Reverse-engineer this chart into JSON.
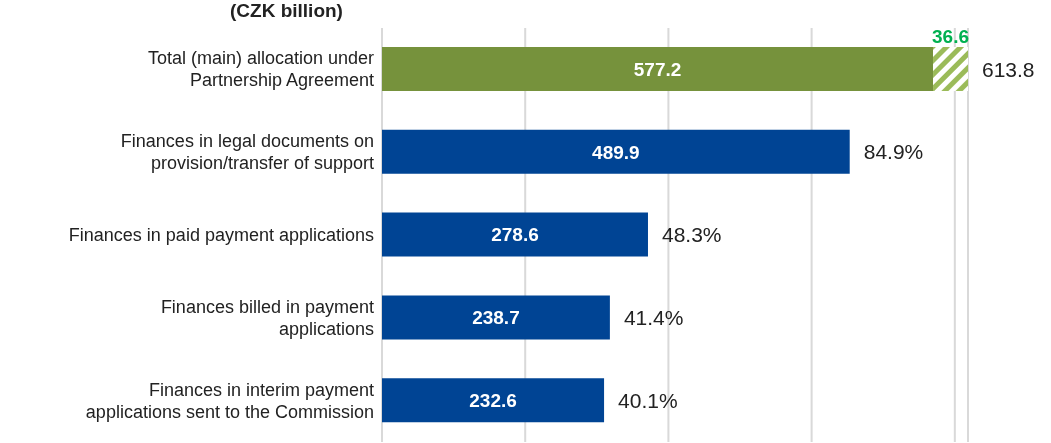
{
  "chart_data": {
    "type": "bar",
    "orientation": "horizontal",
    "stacked": true,
    "title": "(CZK billion)",
    "categories": [
      "Total (main) allocation under Partnership Agreement",
      "Finances in legal documents on provision/transfer of support",
      "Finances in paid payment applications",
      "Finances billed in payment applications",
      "Finances in interim payment applications sent to the Commission"
    ],
    "series": [
      {
        "colors": [
          "#76923c",
          "#004494",
          "#004494",
          "#004494",
          "#004494"
        ],
        "values": [
          577.2,
          489.9,
          278.6,
          238.7,
          232.6
        ]
      },
      {
        "color": "#9bbb59",
        "values": [
          36.6,
          null,
          null,
          null,
          null
        ]
      }
    ],
    "data_labels": true,
    "totals": [
      "613.8",
      null,
      null,
      null,
      null
    ],
    "annotations": [
      {
        "text": "84.9%",
        "x": 489.9,
        "y": "Finances in legal documents on provision/transfer of support"
      },
      {
        "text": "48.3%",
        "x": 278.6,
        "y": "Finances in paid payment applications"
      },
      {
        "text": "41.4%",
        "x": 238.7,
        "y": "Finances billed in payment applications"
      },
      {
        "text": "40.1%",
        "x": 232.6,
        "y": "Finances in interim payment applications sent to the Commission"
      }
    ],
    "tick_labels": "y",
    "grid": "x"
  }
}
